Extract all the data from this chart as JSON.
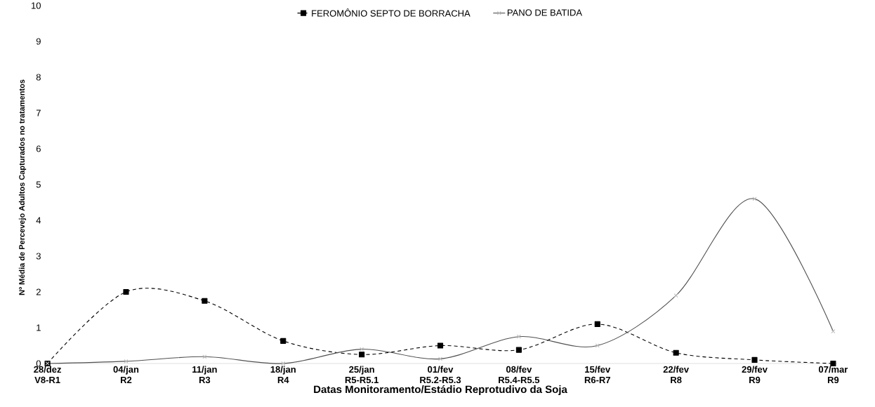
{
  "chart_data": {
    "type": "line",
    "xlabel": "Datas Monitoramento/Estádio Reprotudivo da Soja",
    "ylabel": "Nº Média de Percevejo Adultos Capturados no tratamentos",
    "categories": [
      "28/dez V8-R1",
      "04/jan R2",
      "11/jan R3",
      "18/jan R4",
      "25/jan R5-R5.1",
      "01/fev R5.2-R5.3",
      "08/fev R5.4-R5.5",
      "15/fev R6-R7",
      "22/fev R8",
      "29/fev R9",
      "07/mar R9"
    ],
    "series": [
      {
        "name": "FEROMÔNIO SEPTO DE BORRACHA",
        "color": "#000000",
        "marker": "square",
        "line_style": "dashed",
        "values": [
          0,
          2,
          1.75,
          0.63,
          0.25,
          0.5,
          0.38,
          1.1,
          0.3,
          0.1,
          0
        ]
      },
      {
        "name": "PANO DE BATIDA",
        "color": "#505050",
        "marker": "cross",
        "line_style": "solid",
        "values": [
          0,
          0.06,
          0.19,
          0,
          0.4,
          0.13,
          0.75,
          0.5,
          1.9,
          4.6,
          0.9
        ]
      }
    ],
    "ylim": [
      0,
      10
    ],
    "yticks": [
      0,
      1,
      2,
      3,
      4,
      5,
      6,
      7,
      8,
      9,
      10
    ],
    "grid": false,
    "legend": "top"
  }
}
